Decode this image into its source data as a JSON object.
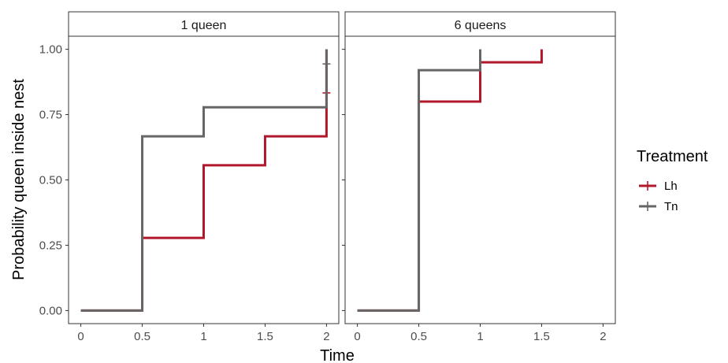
{
  "chart_data": {
    "type": "line",
    "subtype": "step",
    "xlabel": "Time",
    "ylabel": "Probability queen inside nest",
    "xlim": [
      -0.1,
      2.1
    ],
    "ylim": [
      -0.05,
      1.05
    ],
    "x_ticks": [
      0,
      0.5,
      1,
      1.5,
      2
    ],
    "x_tick_labels": [
      "0",
      "0.5",
      "1",
      "1.5",
      "2"
    ],
    "y_ticks": [
      0,
      0.25,
      0.5,
      0.75,
      1
    ],
    "y_tick_labels": [
      "0.00",
      "0.25",
      "0.50",
      "0.75",
      "1.00"
    ],
    "grid": false,
    "legend": {
      "title": "Treatment",
      "position": "right",
      "entries": [
        {
          "name": "Lh",
          "color": "#b2182b"
        },
        {
          "name": "Tn",
          "color": "#666666"
        }
      ]
    },
    "panels": [
      {
        "label": "1 queen",
        "series": [
          {
            "name": "Lh",
            "color": "#b2182b",
            "x": [
              0,
              0.5,
              1,
              1.5,
              2
            ],
            "y": [
              0,
              0.278,
              0.556,
              0.667,
              1.0
            ],
            "censor": [
              {
                "x": 2,
                "y": 0.833
              }
            ]
          },
          {
            "name": "Tn",
            "color": "#666666",
            "x": [
              0,
              0.5,
              1,
              2
            ],
            "y": [
              0,
              0.667,
              0.778,
              1.0
            ],
            "censor": [
              {
                "x": 2,
                "y": 0.944
              }
            ]
          }
        ]
      },
      {
        "label": "6 queens",
        "series": [
          {
            "name": "Lh",
            "color": "#b2182b",
            "x": [
              0,
              0.5,
              1,
              1.5
            ],
            "y": [
              0,
              0.8,
              0.95,
              1.0
            ],
            "censor": []
          },
          {
            "name": "Tn",
            "color": "#666666",
            "x": [
              0,
              0.5,
              1
            ],
            "y": [
              0,
              0.92,
              1.0
            ],
            "censor": []
          }
        ]
      }
    ]
  }
}
